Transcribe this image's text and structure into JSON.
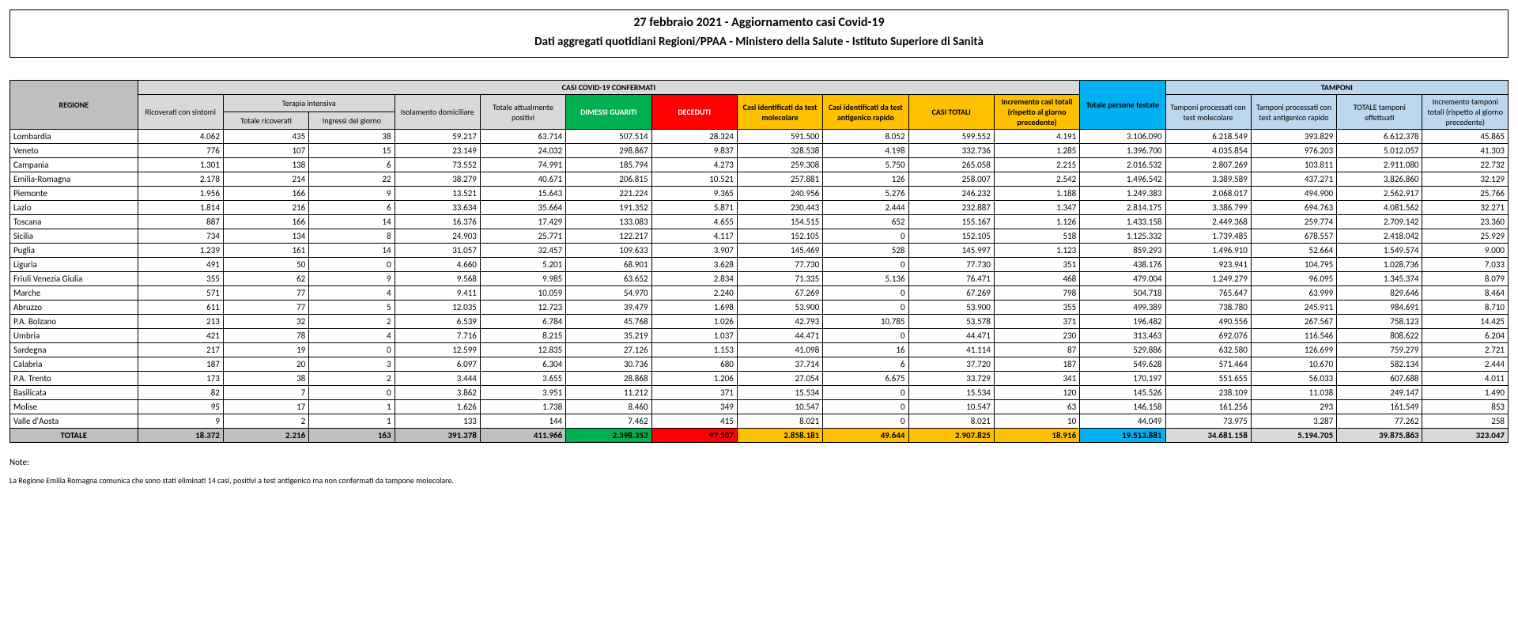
{
  "header": {
    "title": "27 febbraio 2021 - Aggiornamento casi Covid-19",
    "subtitle": "Dati aggregati quotidiani Regioni/PPAA - Ministero della Salute - Istituto Superiore di Sanità"
  },
  "table": {
    "groupHeaders": {
      "casi": "CASI COVID-19 CONFERMATI",
      "terapia": "Terapia intensiva",
      "tamponi": "TAMPONI"
    },
    "columns": {
      "regione": "REGIONE",
      "ricoverati": "Ricoverati con sintomi",
      "ti_totale": "Totale ricoverati",
      "ti_ingressi": "Ingressi del giorno",
      "isolamento": "Isolamento domiciliare",
      "positivi": "Totale attualmente positivi",
      "guariti": "DIMESSI GUARITI",
      "deceduti": "DECEDUTI",
      "casi_mol": "Casi identificati da test molecolare",
      "casi_ag": "Casi identificati da test antigenico rapido",
      "casi_tot": "CASI TOTALI",
      "incr_casi": "Incremento casi totali (rispetto al giorno precedente)",
      "persone": "Totale persone testate",
      "tamp_mol": "Tamponi processati con test molecolare",
      "tamp_ag": "Tamponi processati con test antigenico rapido",
      "tamp_tot": "TOTALE tamponi effettuati",
      "incr_tamp": "Incremento tamponi totali (rispetto al giorno precedente)"
    },
    "rows": [
      {
        "regione": "Lombardia",
        "ricoverati": "4.062",
        "ti_totale": "435",
        "ti_ingressi": "38",
        "isolamento": "59.217",
        "positivi": "63.714",
        "guariti": "507.514",
        "deceduti": "28.324",
        "casi_mol": "591.500",
        "casi_ag": "8.052",
        "casi_tot": "599.552",
        "incr_casi": "4.191",
        "persone": "3.106.090",
        "tamp_mol": "6.218.549",
        "tamp_ag": "393.829",
        "tamp_tot": "6.612.378",
        "incr_tamp": "45.865"
      },
      {
        "regione": "Veneto",
        "ricoverati": "776",
        "ti_totale": "107",
        "ti_ingressi": "15",
        "isolamento": "23.149",
        "positivi": "24.032",
        "guariti": "298.867",
        "deceduti": "9.837",
        "casi_mol": "328.538",
        "casi_ag": "4.198",
        "casi_tot": "332.736",
        "incr_casi": "1.285",
        "persone": "1.396.700",
        "tamp_mol": "4.035.854",
        "tamp_ag": "976.203",
        "tamp_tot": "5.012.057",
        "incr_tamp": "41.303"
      },
      {
        "regione": "Campania",
        "ricoverati": "1.301",
        "ti_totale": "138",
        "ti_ingressi": "6",
        "isolamento": "73.552",
        "positivi": "74.991",
        "guariti": "185.794",
        "deceduti": "4.273",
        "casi_mol": "259.308",
        "casi_ag": "5.750",
        "casi_tot": "265.058",
        "incr_casi": "2.215",
        "persone": "2.016.532",
        "tamp_mol": "2.807.269",
        "tamp_ag": "103.811",
        "tamp_tot": "2.911.080",
        "incr_tamp": "22.732"
      },
      {
        "regione": "Emilia-Romagna",
        "ricoverati": "2.178",
        "ti_totale": "214",
        "ti_ingressi": "22",
        "isolamento": "38.279",
        "positivi": "40.671",
        "guariti": "206.815",
        "deceduti": "10.521",
        "casi_mol": "257.881",
        "casi_ag": "126",
        "casi_tot": "258.007",
        "incr_casi": "2.542",
        "persone": "1.496.542",
        "tamp_mol": "3.389.589",
        "tamp_ag": "437.271",
        "tamp_tot": "3.826.860",
        "incr_tamp": "32.129"
      },
      {
        "regione": "Piemonte",
        "ricoverati": "1.956",
        "ti_totale": "166",
        "ti_ingressi": "9",
        "isolamento": "13.521",
        "positivi": "15.643",
        "guariti": "221.224",
        "deceduti": "9.365",
        "casi_mol": "240.956",
        "casi_ag": "5.276",
        "casi_tot": "246.232",
        "incr_casi": "1.188",
        "persone": "1.249.383",
        "tamp_mol": "2.068.017",
        "tamp_ag": "494.900",
        "tamp_tot": "2.562.917",
        "incr_tamp": "25.766"
      },
      {
        "regione": "Lazio",
        "ricoverati": "1.814",
        "ti_totale": "216",
        "ti_ingressi": "6",
        "isolamento": "33.634",
        "positivi": "35.664",
        "guariti": "191.352",
        "deceduti": "5.871",
        "casi_mol": "230.443",
        "casi_ag": "2.444",
        "casi_tot": "232.887",
        "incr_casi": "1.347",
        "persone": "2.814.175",
        "tamp_mol": "3.386.799",
        "tamp_ag": "694.763",
        "tamp_tot": "4.081.562",
        "incr_tamp": "32.271"
      },
      {
        "regione": "Toscana",
        "ricoverati": "887",
        "ti_totale": "166",
        "ti_ingressi": "14",
        "isolamento": "16.376",
        "positivi": "17.429",
        "guariti": "133.083",
        "deceduti": "4.655",
        "casi_mol": "154.515",
        "casi_ag": "652",
        "casi_tot": "155.167",
        "incr_casi": "1.126",
        "persone": "1.433.158",
        "tamp_mol": "2.449.368",
        "tamp_ag": "259.774",
        "tamp_tot": "2.709.142",
        "incr_tamp": "23.360"
      },
      {
        "regione": "Sicilia",
        "ricoverati": "734",
        "ti_totale": "134",
        "ti_ingressi": "8",
        "isolamento": "24.903",
        "positivi": "25.771",
        "guariti": "122.217",
        "deceduti": "4.117",
        "casi_mol": "152.105",
        "casi_ag": "0",
        "casi_tot": "152.105",
        "incr_casi": "518",
        "persone": "1.125.332",
        "tamp_mol": "1.739.485",
        "tamp_ag": "678.557",
        "tamp_tot": "2.418.042",
        "incr_tamp": "25.929"
      },
      {
        "regione": "Puglia",
        "ricoverati": "1.239",
        "ti_totale": "161",
        "ti_ingressi": "14",
        "isolamento": "31.057",
        "positivi": "32.457",
        "guariti": "109.633",
        "deceduti": "3.907",
        "casi_mol": "145.469",
        "casi_ag": "528",
        "casi_tot": "145.997",
        "incr_casi": "1.123",
        "persone": "859.293",
        "tamp_mol": "1.496.910",
        "tamp_ag": "52.664",
        "tamp_tot": "1.549.574",
        "incr_tamp": "9.000"
      },
      {
        "regione": "Liguria",
        "ricoverati": "491",
        "ti_totale": "50",
        "ti_ingressi": "0",
        "isolamento": "4.660",
        "positivi": "5.201",
        "guariti": "68.901",
        "deceduti": "3.628",
        "casi_mol": "77.730",
        "casi_ag": "0",
        "casi_tot": "77.730",
        "incr_casi": "351",
        "persone": "438.176",
        "tamp_mol": "923.941",
        "tamp_ag": "104.795",
        "tamp_tot": "1.028.736",
        "incr_tamp": "7.033"
      },
      {
        "regione": "Friuli Venezia Giulia",
        "ricoverati": "355",
        "ti_totale": "62",
        "ti_ingressi": "9",
        "isolamento": "9.568",
        "positivi": "9.985",
        "guariti": "63.652",
        "deceduti": "2.834",
        "casi_mol": "71.335",
        "casi_ag": "5.136",
        "casi_tot": "76.471",
        "incr_casi": "468",
        "persone": "479.004",
        "tamp_mol": "1.249.279",
        "tamp_ag": "96.095",
        "tamp_tot": "1.345.374",
        "incr_tamp": "8.079"
      },
      {
        "regione": "Marche",
        "ricoverati": "571",
        "ti_totale": "77",
        "ti_ingressi": "4",
        "isolamento": "9.411",
        "positivi": "10.059",
        "guariti": "54.970",
        "deceduti": "2.240",
        "casi_mol": "67.269",
        "casi_ag": "0",
        "casi_tot": "67.269",
        "incr_casi": "798",
        "persone": "504.718",
        "tamp_mol": "765.647",
        "tamp_ag": "63.999",
        "tamp_tot": "829.646",
        "incr_tamp": "8.464"
      },
      {
        "regione": "Abruzzo",
        "ricoverati": "611",
        "ti_totale": "77",
        "ti_ingressi": "5",
        "isolamento": "12.035",
        "positivi": "12.723",
        "guariti": "39.479",
        "deceduti": "1.698",
        "casi_mol": "53.900",
        "casi_ag": "0",
        "casi_tot": "53.900",
        "incr_casi": "355",
        "persone": "499.389",
        "tamp_mol": "738.780",
        "tamp_ag": "245.911",
        "tamp_tot": "984.691",
        "incr_tamp": "8.710"
      },
      {
        "regione": "P.A. Bolzano",
        "ricoverati": "213",
        "ti_totale": "32",
        "ti_ingressi": "2",
        "isolamento": "6.539",
        "positivi": "6.784",
        "guariti": "45.768",
        "deceduti": "1.026",
        "casi_mol": "42.793",
        "casi_ag": "10.785",
        "casi_tot": "53.578",
        "incr_casi": "371",
        "persone": "196.482",
        "tamp_mol": "490.556",
        "tamp_ag": "267.567",
        "tamp_tot": "758.123",
        "incr_tamp": "14.425"
      },
      {
        "regione": "Umbria",
        "ricoverati": "421",
        "ti_totale": "78",
        "ti_ingressi": "4",
        "isolamento": "7.716",
        "positivi": "8.215",
        "guariti": "35.219",
        "deceduti": "1.037",
        "casi_mol": "44.471",
        "casi_ag": "0",
        "casi_tot": "44.471",
        "incr_casi": "230",
        "persone": "313.463",
        "tamp_mol": "692.076",
        "tamp_ag": "116.546",
        "tamp_tot": "808.622",
        "incr_tamp": "6.204"
      },
      {
        "regione": "Sardegna",
        "ricoverati": "217",
        "ti_totale": "19",
        "ti_ingressi": "0",
        "isolamento": "12.599",
        "positivi": "12.835",
        "guariti": "27.126",
        "deceduti": "1.153",
        "casi_mol": "41.098",
        "casi_ag": "16",
        "casi_tot": "41.114",
        "incr_casi": "87",
        "persone": "529.886",
        "tamp_mol": "632.580",
        "tamp_ag": "126.699",
        "tamp_tot": "759.279",
        "incr_tamp": "2.721"
      },
      {
        "regione": "Calabria",
        "ricoverati": "187",
        "ti_totale": "20",
        "ti_ingressi": "3",
        "isolamento": "6.097",
        "positivi": "6.304",
        "guariti": "30.736",
        "deceduti": "680",
        "casi_mol": "37.714",
        "casi_ag": "6",
        "casi_tot": "37.720",
        "incr_casi": "187",
        "persone": "549.628",
        "tamp_mol": "571.464",
        "tamp_ag": "10.670",
        "tamp_tot": "582.134",
        "incr_tamp": "2.444"
      },
      {
        "regione": "P.A. Trento",
        "ricoverati": "173",
        "ti_totale": "38",
        "ti_ingressi": "2",
        "isolamento": "3.444",
        "positivi": "3.655",
        "guariti": "28.868",
        "deceduti": "1.206",
        "casi_mol": "27.054",
        "casi_ag": "6.675",
        "casi_tot": "33.729",
        "incr_casi": "341",
        "persone": "170.197",
        "tamp_mol": "551.655",
        "tamp_ag": "56.033",
        "tamp_tot": "607.688",
        "incr_tamp": "4.011"
      },
      {
        "regione": "Basilicata",
        "ricoverati": "82",
        "ti_totale": "7",
        "ti_ingressi": "0",
        "isolamento": "3.862",
        "positivi": "3.951",
        "guariti": "11.212",
        "deceduti": "371",
        "casi_mol": "15.534",
        "casi_ag": "0",
        "casi_tot": "15.534",
        "incr_casi": "120",
        "persone": "145.526",
        "tamp_mol": "238.109",
        "tamp_ag": "11.038",
        "tamp_tot": "249.147",
        "incr_tamp": "1.490"
      },
      {
        "regione": "Molise",
        "ricoverati": "95",
        "ti_totale": "17",
        "ti_ingressi": "1",
        "isolamento": "1.626",
        "positivi": "1.738",
        "guariti": "8.460",
        "deceduti": "349",
        "casi_mol": "10.547",
        "casi_ag": "0",
        "casi_tot": "10.547",
        "incr_casi": "63",
        "persone": "146.158",
        "tamp_mol": "161.256",
        "tamp_ag": "293",
        "tamp_tot": "161.549",
        "incr_tamp": "853"
      },
      {
        "regione": "Valle d'Aosta",
        "ricoverati": "9",
        "ti_totale": "2",
        "ti_ingressi": "1",
        "isolamento": "133",
        "positivi": "144",
        "guariti": "7.462",
        "deceduti": "415",
        "casi_mol": "8.021",
        "casi_ag": "0",
        "casi_tot": "8.021",
        "incr_casi": "10",
        "persone": "44.049",
        "tamp_mol": "73.975",
        "tamp_ag": "3.287",
        "tamp_tot": "77.262",
        "incr_tamp": "258"
      }
    ],
    "total": {
      "regione": "TOTALE",
      "ricoverati": "18.372",
      "ti_totale": "2.216",
      "ti_ingressi": "163",
      "isolamento": "391.378",
      "positivi": "411.966",
      "guariti": "2.398.352",
      "deceduti": "97.507",
      "casi_mol": "2.858.181",
      "casi_ag": "49.644",
      "casi_tot": "2.907.825",
      "incr_casi": "18.916",
      "persone": "19.513.881",
      "tamp_mol": "34.681.158",
      "tamp_ag": "5.194.705",
      "tamp_tot": "39.875.863",
      "incr_tamp": "323.047"
    }
  },
  "notes": {
    "title": "Note:",
    "line1": "La Regione Emilia Romagna comunica che sono stati eliminati 14 casi, positivi a test antigenico ma non confermati da tampone molecolare."
  }
}
